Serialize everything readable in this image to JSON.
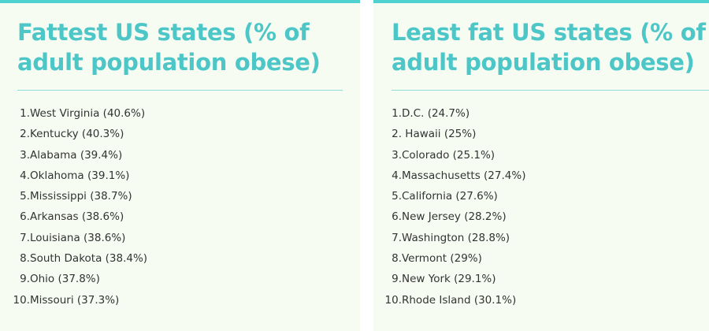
{
  "fattest": {
    "title": "Fattest US states (% of adult population obese)",
    "items": [
      {
        "rank": "1.",
        "text": "West Virginia (40.6%)"
      },
      {
        "rank": "2.",
        "text": "Kentucky (40.3%)"
      },
      {
        "rank": "3.",
        "text": "Alabama (39.4%)"
      },
      {
        "rank": "4.",
        "text": "Oklahoma (39.1%)"
      },
      {
        "rank": "5.",
        "text": "Mississippi (38.7%)"
      },
      {
        "rank": "6.",
        "text": "Arkansas (38.6%)"
      },
      {
        "rank": "7.",
        "text": "Louisiana (38.6%)"
      },
      {
        "rank": "8.",
        "text": "South Dakota (38.4%)"
      },
      {
        "rank": "9.",
        "text": "Ohio (37.8%)"
      },
      {
        "rank": "10.",
        "text": "Missouri (37.3%)"
      }
    ]
  },
  "least_fat": {
    "title": "Least fat US states (% of adult population obese)",
    "items": [
      {
        "rank": "1.",
        "text": "D.C. (24.7%)"
      },
      {
        "rank": "2.",
        "text": " Hawaii (25%)"
      },
      {
        "rank": "3.",
        "text": "Colorado (25.1%)"
      },
      {
        "rank": "4.",
        "text": "Massachusetts (27.4%)"
      },
      {
        "rank": "5.",
        "text": "California (27.6%)"
      },
      {
        "rank": "6.",
        "text": "New Jersey (28.2%)"
      },
      {
        "rank": "7.",
        "text": "Washington (28.8%)"
      },
      {
        "rank": "8.",
        "text": "Vermont (29%)"
      },
      {
        "rank": "9.",
        "text": "New York (29.1%)"
      },
      {
        "rank": "10.",
        "text": "Rhode Island (30.1%)"
      }
    ]
  },
  "colors": {
    "accent": "#4cc6c6",
    "panel_background": "#f7fcf3",
    "text": "#333333"
  }
}
